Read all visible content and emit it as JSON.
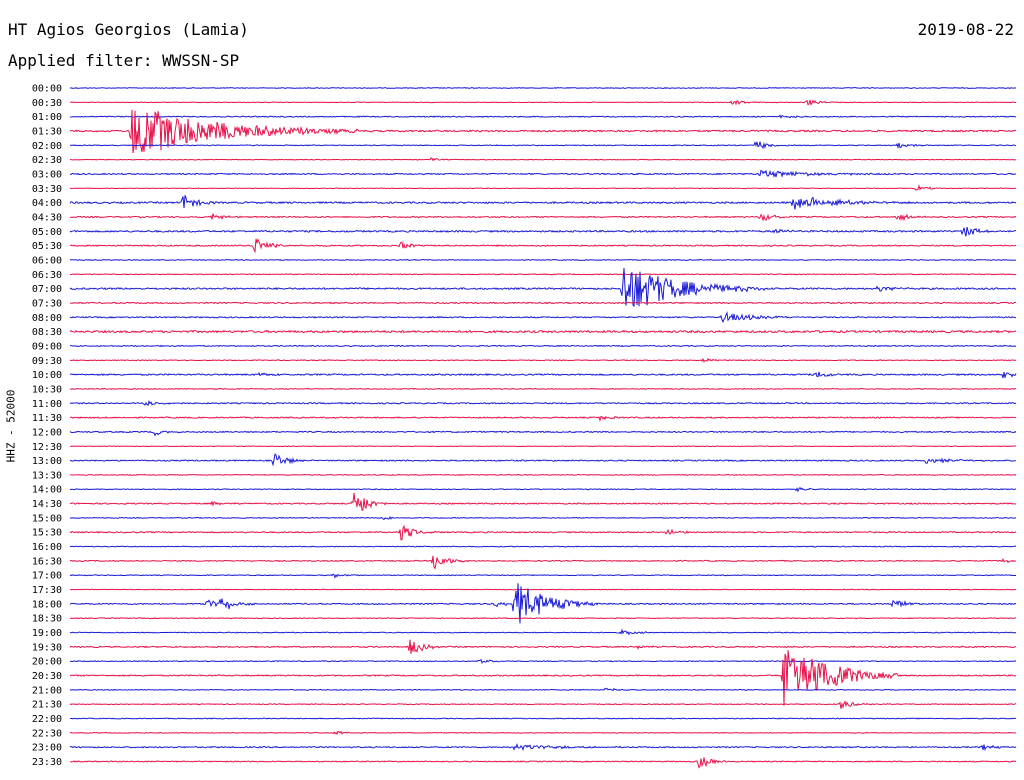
{
  "header": {
    "station": "HT Agios Georgios (Lamia)",
    "date": "2019-08-22",
    "filter": "Applied filter: WWSSN-SP"
  },
  "chart_data": {
    "type": "line",
    "title": "HT Agios Georgios (Lamia)",
    "subtitle": "Applied filter: WWSSN-SP",
    "ylabel": "HHZ - 52000",
    "xlabel": "",
    "grid": false,
    "colors": [
      "#1a1ad6",
      "#e8104a"
    ],
    "rows": [
      {
        "label": "00:00",
        "noise": 0.4,
        "events": []
      },
      {
        "label": "00:30",
        "noise": 0.3,
        "events": [
          {
            "x": 0.7,
            "amp": 3
          },
          {
            "x": 0.78,
            "amp": 3
          }
        ]
      },
      {
        "label": "01:00",
        "noise": 0.5,
        "events": [
          {
            "x": 0.75,
            "amp": 2
          }
        ]
      },
      {
        "label": "01:30",
        "noise": 0.8,
        "events": [
          {
            "x": 0.065,
            "amp": 28,
            "dur": 0.08
          }
        ]
      },
      {
        "label": "02:00",
        "noise": 0.4,
        "events": [
          {
            "x": 0.725,
            "amp": 5
          },
          {
            "x": 0.875,
            "amp": 3
          }
        ]
      },
      {
        "label": "02:30",
        "noise": 0.3,
        "events": [
          {
            "x": 0.38,
            "amp": 2
          }
        ]
      },
      {
        "label": "03:00",
        "noise": 0.6,
        "events": [
          {
            "x": 0.73,
            "amp": 4,
            "dur": 0.05
          }
        ]
      },
      {
        "label": "03:30",
        "noise": 0.3,
        "events": [
          {
            "x": 0.895,
            "amp": 3
          }
        ]
      },
      {
        "label": "04:00",
        "noise": 0.8,
        "events": [
          {
            "x": 0.12,
            "amp": 9
          },
          {
            "x": 0.765,
            "amp": 9
          },
          {
            "x": 0.78,
            "amp": 8
          },
          {
            "x": 0.8,
            "amp": 3,
            "dur": 0.04
          }
        ]
      },
      {
        "label": "04:30",
        "noise": 0.6,
        "events": [
          {
            "x": 0.15,
            "amp": 4
          },
          {
            "x": 0.73,
            "amp": 5
          },
          {
            "x": 0.875,
            "amp": 4
          }
        ]
      },
      {
        "label": "05:00",
        "noise": 0.8,
        "events": [
          {
            "x": 0.745,
            "amp": 3
          },
          {
            "x": 0.945,
            "amp": 7
          }
        ]
      },
      {
        "label": "05:30",
        "noise": 0.6,
        "events": [
          {
            "x": 0.195,
            "amp": 9
          },
          {
            "x": 0.35,
            "amp": 4
          }
        ]
      },
      {
        "label": "06:00",
        "noise": 0.4,
        "events": []
      },
      {
        "label": "06:30",
        "noise": 0.4,
        "events": []
      },
      {
        "label": "07:00",
        "noise": 0.8,
        "events": [
          {
            "x": 0.585,
            "amp": 28,
            "dur": 0.05
          },
          {
            "x": 0.855,
            "amp": 4
          }
        ]
      },
      {
        "label": "07:30",
        "noise": 0.6,
        "events": []
      },
      {
        "label": "08:00",
        "noise": 0.6,
        "events": [
          {
            "x": 0.69,
            "amp": 5,
            "dur": 0.03
          }
        ]
      },
      {
        "label": "08:30",
        "noise": 1.0,
        "events": []
      },
      {
        "label": "09:00",
        "noise": 0.5,
        "events": []
      },
      {
        "label": "09:30",
        "noise": 0.4,
        "events": [
          {
            "x": 0.67,
            "amp": 2
          }
        ]
      },
      {
        "label": "10:00",
        "noise": 0.7,
        "events": [
          {
            "x": 0.2,
            "amp": 2
          },
          {
            "x": 0.79,
            "amp": 4
          },
          {
            "x": 0.985,
            "amp": 4
          }
        ]
      },
      {
        "label": "10:30",
        "noise": 0.4,
        "events": []
      },
      {
        "label": "11:00",
        "noise": 0.6,
        "events": [
          {
            "x": 0.08,
            "amp": 3
          }
        ]
      },
      {
        "label": "11:30",
        "noise": 0.6,
        "events": [
          {
            "x": 0.56,
            "amp": 3
          }
        ]
      },
      {
        "label": "12:00",
        "noise": 0.6,
        "events": [
          {
            "x": 0.09,
            "amp": 3
          }
        ]
      },
      {
        "label": "12:30",
        "noise": 0.3,
        "events": []
      },
      {
        "label": "13:00",
        "noise": 0.6,
        "events": [
          {
            "x": 0.215,
            "amp": 9
          },
          {
            "x": 0.905,
            "amp": 3,
            "dur": 0.03
          }
        ]
      },
      {
        "label": "13:30",
        "noise": 0.4,
        "events": []
      },
      {
        "label": "14:00",
        "noise": 0.4,
        "events": [
          {
            "x": 0.765,
            "amp": 3
          }
        ]
      },
      {
        "label": "14:30",
        "noise": 0.6,
        "events": [
          {
            "x": 0.15,
            "amp": 2
          },
          {
            "x": 0.3,
            "amp": 18
          }
        ]
      },
      {
        "label": "15:00",
        "noise": 0.4,
        "events": [
          {
            "x": 0.33,
            "amp": 2
          }
        ]
      },
      {
        "label": "15:30",
        "noise": 0.6,
        "events": [
          {
            "x": 0.35,
            "amp": 9
          },
          {
            "x": 0.63,
            "amp": 3
          }
        ]
      },
      {
        "label": "16:00",
        "noise": 0.4,
        "events": []
      },
      {
        "label": "16:30",
        "noise": 0.5,
        "events": [
          {
            "x": 0.385,
            "amp": 10
          },
          {
            "x": 0.985,
            "amp": 2
          }
        ]
      },
      {
        "label": "17:00",
        "noise": 0.4,
        "events": [
          {
            "x": 0.28,
            "amp": 2
          }
        ]
      },
      {
        "label": "17:30",
        "noise": 0.3,
        "events": []
      },
      {
        "label": "18:00",
        "noise": 0.6,
        "events": [
          {
            "x": 0.145,
            "amp": 5
          },
          {
            "x": 0.16,
            "amp": 8
          },
          {
            "x": 0.45,
            "amp": 3
          },
          {
            "x": 0.47,
            "amp": 26,
            "dur": 0.03
          },
          {
            "x": 0.87,
            "amp": 5
          }
        ]
      },
      {
        "label": "18:30",
        "noise": 0.4,
        "events": []
      },
      {
        "label": "19:00",
        "noise": 0.4,
        "events": [
          {
            "x": 0.583,
            "amp": 3
          }
        ]
      },
      {
        "label": "19:30",
        "noise": 0.6,
        "events": [
          {
            "x": 0.36,
            "amp": 9
          },
          {
            "x": 0.6,
            "amp": 2
          }
        ]
      },
      {
        "label": "20:00",
        "noise": 0.4,
        "events": [
          {
            "x": 0.43,
            "amp": 3
          }
        ]
      },
      {
        "label": "20:30",
        "noise": 0.6,
        "events": [
          {
            "x": 0.755,
            "amp": 38,
            "dur": 0.04
          },
          {
            "x": 0.795,
            "amp": 7
          }
        ]
      },
      {
        "label": "21:00",
        "noise": 0.4,
        "events": [
          {
            "x": 0.565,
            "amp": 2
          }
        ]
      },
      {
        "label": "21:30",
        "noise": 0.4,
        "events": [
          {
            "x": 0.815,
            "amp": 5
          }
        ]
      },
      {
        "label": "22:00",
        "noise": 0.4,
        "events": []
      },
      {
        "label": "22:30",
        "noise": 0.3,
        "events": [
          {
            "x": 0.28,
            "amp": 2
          }
        ]
      },
      {
        "label": "23:00",
        "noise": 0.6,
        "events": [
          {
            "x": 0.47,
            "amp": 3,
            "dur": 0.04
          },
          {
            "x": 0.965,
            "amp": 3
          }
        ]
      },
      {
        "label": "23:30",
        "noise": 0.5,
        "events": [
          {
            "x": 0.665,
            "amp": 7
          }
        ]
      }
    ]
  }
}
